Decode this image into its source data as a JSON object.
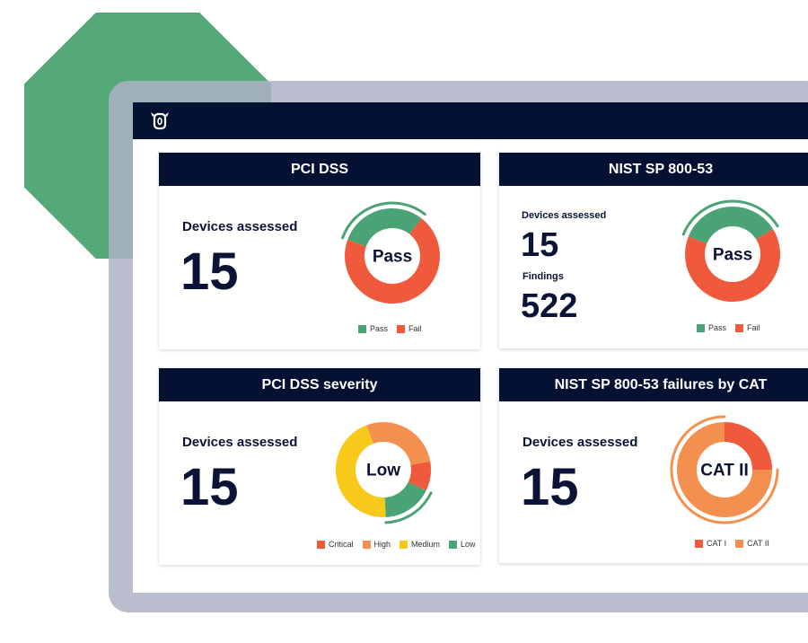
{
  "colors": {
    "navy": "#051133",
    "pass": "#4aa374",
    "fail": "#f05a3c",
    "critical": "#f05a3c",
    "high": "#f4904f",
    "medium": "#f8c81a",
    "low": "#4aa374",
    "cat1": "#f05a3c",
    "cat2": "#f4904f"
  },
  "app": {
    "logo_icon": "owl-logo-icon"
  },
  "cards": [
    {
      "title": "PCI DSS",
      "devices_label": "Devices assessed",
      "devices_value": "15",
      "center_label": "Pass",
      "legend": [
        "Pass",
        "Fail"
      ]
    },
    {
      "title": "NIST SP 800-53",
      "devices_label": "Devices assessed",
      "devices_value": "15",
      "findings_label": "Findings",
      "findings_value": "522",
      "center_label": "Pass",
      "legend": [
        "Pass",
        "Fail"
      ]
    },
    {
      "title": "PCI DSS severity",
      "devices_label": "Devices assessed",
      "devices_value": "15",
      "center_label": "Low",
      "legend": [
        "Critical",
        "High",
        "Medium",
        "Low"
      ]
    },
    {
      "title": "NIST SP 800-53 failures by CAT",
      "devices_label": "Devices assessed",
      "devices_value": "15",
      "center_label": "CAT II",
      "legend": [
        "CAT I",
        "CAT II"
      ]
    }
  ],
  "donuts": {
    "pci": [
      {
        "label": "Pass",
        "value": 30,
        "color": "#4aa374"
      },
      {
        "label": "Fail",
        "value": 70,
        "color": "#f05a3c"
      }
    ],
    "nist": [
      {
        "label": "Pass",
        "value": 35,
        "color": "#4aa374"
      },
      {
        "label": "Fail",
        "value": 65,
        "color": "#f05a3c"
      }
    ],
    "severity": [
      {
        "label": "Critical",
        "value": 10,
        "color": "#f05a3c"
      },
      {
        "label": "Low",
        "value": 17,
        "color": "#4aa374"
      },
      {
        "label": "Medium",
        "value": 45,
        "color": "#f8c81a"
      },
      {
        "label": "High",
        "value": 28,
        "color": "#f4904f"
      }
    ],
    "cat": [
      {
        "label": "CAT I",
        "value": 25,
        "color": "#f05a3c"
      },
      {
        "label": "CAT II",
        "value": 75,
        "color": "#f4904f"
      }
    ]
  }
}
